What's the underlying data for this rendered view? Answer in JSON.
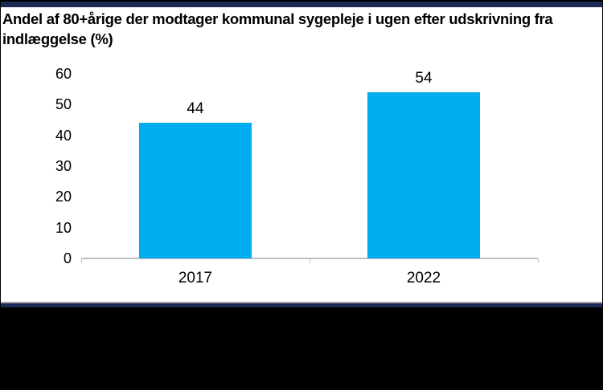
{
  "title": {
    "line1": "Andel af 80+årige der modtager kommunal sygepleje i ugen efter udskrivning fra",
    "line2": "indlæggelse (%)"
  },
  "chart_data": {
    "type": "bar",
    "title": "Andel af 80+årige der modtager kommunal sygepleje i ugen efter udskrivning fra indlæggelse (%)",
    "categories": [
      "2017",
      "2022"
    ],
    "values": [
      44,
      54
    ],
    "value_labels": [
      "44",
      "54"
    ],
    "xlabel": "",
    "ylabel": "",
    "ylim": [
      0,
      60
    ],
    "yticks": [
      0,
      10,
      20,
      30,
      40,
      50,
      60
    ],
    "grid": false,
    "legend_position": "none",
    "bar_color": "#00AEEF"
  },
  "colors": {
    "bar": "#00AEEF",
    "accent_navy": "#1E2A56",
    "axis_line": "#BFBFBF",
    "separator_gray": "#A6A6A6",
    "footer_black": "#000000"
  }
}
